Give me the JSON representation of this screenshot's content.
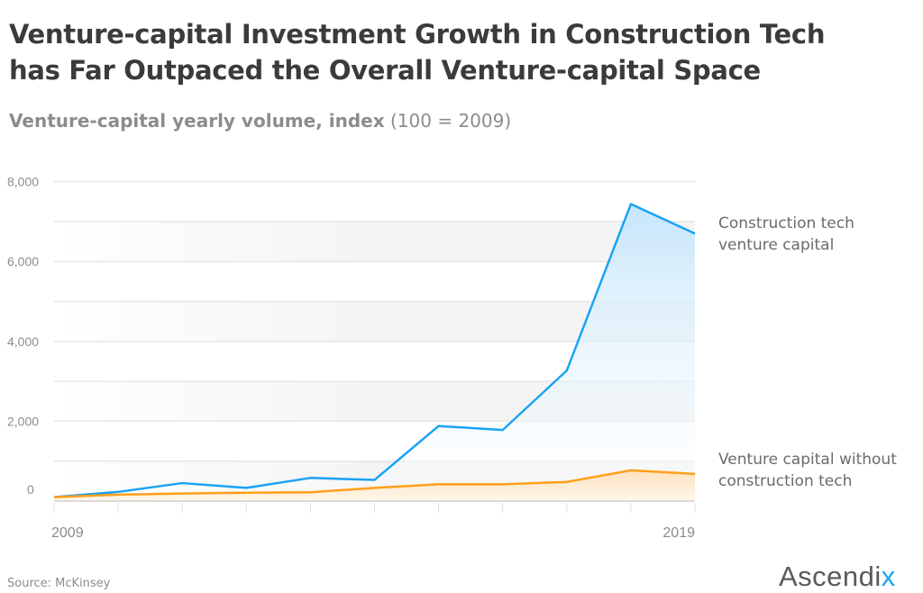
{
  "title_line1": "Venture-capital Investment Growth in Construction Tech",
  "title_line2": "has Far Outpaced the Overall Venture-capital Space",
  "subtitle_bold": "Venture-capital yearly volume, index",
  "subtitle_normal": "(100 = 2009)",
  "source": "Source:  McKinsey",
  "logo": {
    "text": "Ascendi",
    "accent": "x"
  },
  "chart_data": {
    "type": "area",
    "title": "Venture-capital Investment Growth in Construction Tech has Far Outpaced the Overall Venture-capital Space",
    "ylabel": "Venture-capital yearly volume, index (100 = 2009)",
    "x": [
      2009,
      2010,
      2011,
      2012,
      2013,
      2014,
      2015,
      2016,
      2017,
      2018,
      2019
    ],
    "x_tick_labels": [
      "2009",
      "2019"
    ],
    "y_tick_labels": [
      "0",
      "2,000",
      "4,000",
      "6,000",
      "8,000"
    ],
    "y_ticks": [
      0,
      2000,
      4000,
      6000,
      8000
    ],
    "ylim": [
      0,
      8000
    ],
    "grid": true,
    "series": [
      {
        "name_line1": "Construction tech",
        "name_line2": "venture capital",
        "color": "#1aa3f5",
        "values": [
          100,
          230,
          450,
          330,
          580,
          530,
          1880,
          1780,
          3270,
          7440,
          6700
        ]
      },
      {
        "name_line1": "Venture capital without",
        "name_line2": "construction tech",
        "color": "#ff9f1a",
        "values": [
          100,
          160,
          190,
          210,
          220,
          330,
          420,
          420,
          480,
          770,
          680
        ]
      }
    ]
  }
}
